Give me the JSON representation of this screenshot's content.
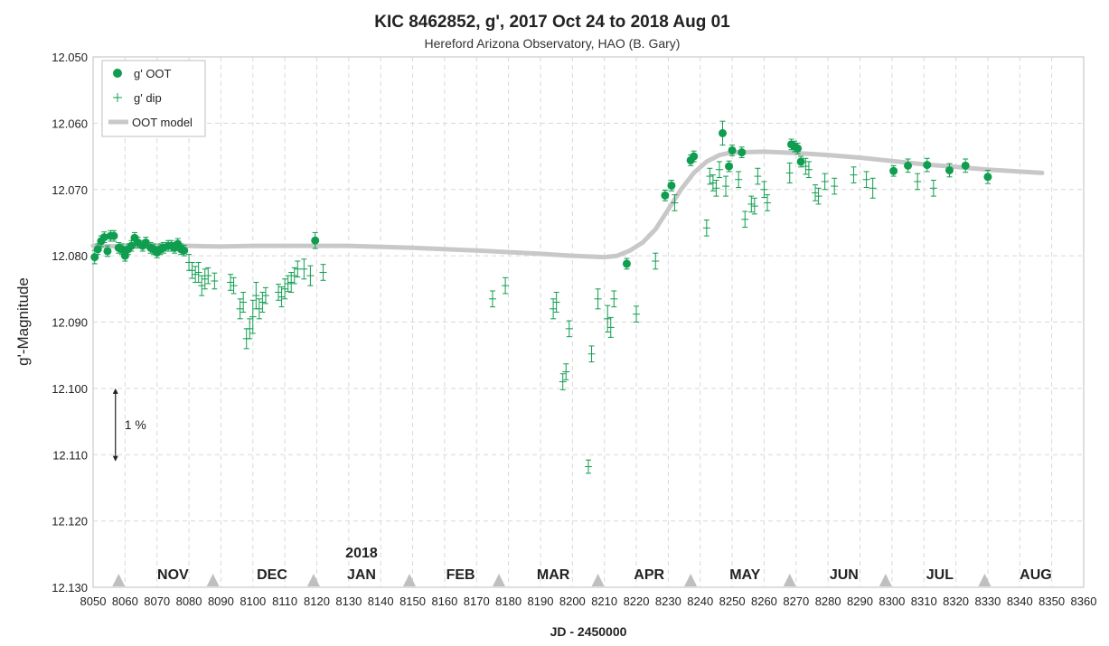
{
  "chart_data": {
    "type": "scatter",
    "title": "KIC 8462852, g', 2017 Oct 24 to 2018 Aug 01",
    "subtitle": "Hereford Arizona Observatory, HAO (B. Gary)",
    "xlabel": "JD - 2450000",
    "ylabel": "g'-Magnitude",
    "xlim": [
      8050,
      8360
    ],
    "ylim": [
      12.05,
      12.13
    ],
    "y_inverted": true,
    "grid": true,
    "legend_position": "top-left",
    "x_ticks": [
      "8050",
      "8060",
      "8070",
      "8080",
      "8090",
      "8100",
      "8110",
      "8120",
      "8130",
      "8140",
      "8150",
      "8160",
      "8170",
      "8180",
      "8190",
      "8200",
      "8210",
      "8220",
      "8230",
      "8240",
      "8250",
      "8260",
      "8270",
      "8280",
      "8290",
      "8300",
      "8310",
      "8320",
      "8330",
      "8340",
      "8350",
      "8360"
    ],
    "y_ticks": [
      "12.050",
      "12.060",
      "12.070",
      "12.080",
      "12.090",
      "12.100",
      "12.110",
      "12.120",
      "12.130"
    ],
    "legend": [
      "g' OOT",
      "g' dip",
      "OOT model"
    ],
    "series": [
      {
        "name": "g' OOT",
        "color": "#0f9d4f",
        "marker": "circle",
        "points": [
          [
            8050.5,
            12.0802
          ],
          [
            8051.5,
            12.079
          ],
          [
            8052.5,
            12.0778
          ],
          [
            8053.5,
            12.0772
          ],
          [
            8054.5,
            12.0793
          ],
          [
            8055.5,
            12.077
          ],
          [
            8056.5,
            12.077
          ],
          [
            8058,
            12.0788
          ],
          [
            8059,
            12.079
          ],
          [
            8060,
            12.08
          ],
          [
            8061,
            12.079
          ],
          [
            8062,
            12.0785
          ],
          [
            8063,
            12.0773
          ],
          [
            8064,
            12.078
          ],
          [
            8065.5,
            12.0785
          ],
          [
            8066.5,
            12.078
          ],
          [
            8068,
            12.0788
          ],
          [
            8069,
            12.079
          ],
          [
            8070,
            12.0795
          ],
          [
            8071,
            12.079
          ],
          [
            8072,
            12.0788
          ],
          [
            8073.5,
            12.0785
          ],
          [
            8074.5,
            12.0785
          ],
          [
            8075.5,
            12.0788
          ],
          [
            8076.5,
            12.0782
          ],
          [
            8077.5,
            12.079
          ],
          [
            8078.5,
            12.0792
          ],
          [
            8119.5,
            12.0777
          ],
          [
            8217,
            12.0812
          ],
          [
            8229,
            12.0709
          ],
          [
            8231,
            12.0694
          ],
          [
            8237,
            12.0656
          ],
          [
            8238,
            12.065
          ],
          [
            8247,
            12.0615
          ],
          [
            8249,
            12.0665
          ],
          [
            8250,
            12.0641
          ],
          [
            8253,
            12.0644
          ],
          [
            8268.5,
            12.0632
          ],
          [
            8269.5,
            12.0635
          ],
          [
            8270.5,
            12.0638
          ],
          [
            8271.5,
            12.0658
          ],
          [
            8300.5,
            12.0672
          ],
          [
            8305,
            12.0664
          ],
          [
            8311,
            12.0663
          ],
          [
            8318,
            12.0671
          ],
          [
            8323,
            12.0664
          ],
          [
            8330,
            12.0681
          ]
        ],
        "errors": [
          0.001,
          0.0008,
          0.0008,
          0.0008,
          0.0008,
          0.0008,
          0.0008,
          0.0008,
          0.0008,
          0.0008,
          0.0008,
          0.0008,
          0.0008,
          0.0008,
          0.0008,
          0.0008,
          0.0008,
          0.0008,
          0.0008,
          0.0008,
          0.0008,
          0.0008,
          0.0008,
          0.0008,
          0.0008,
          0.0008,
          0.0008,
          0.0012,
          0.0008,
          0.0008,
          0.0008,
          0.0008,
          0.0008,
          0.0018,
          0.0008,
          0.0008,
          0.0008,
          0.0008,
          0.0008,
          0.0008,
          0.0008,
          0.0008,
          0.001,
          0.001,
          0.001,
          0.001,
          0.001
        ]
      },
      {
        "name": "g' dip",
        "color": "#0f9d4f",
        "marker": "plus",
        "points": [
          [
            8080,
            12.081
          ],
          [
            8081,
            12.0822
          ],
          [
            8082,
            12.0828
          ],
          [
            8083,
            12.0825
          ],
          [
            8084,
            12.0845
          ],
          [
            8085,
            12.0835
          ],
          [
            8086,
            12.083
          ],
          [
            8088,
            12.0838
          ],
          [
            8093,
            12.084
          ],
          [
            8094,
            12.0845
          ],
          [
            8096,
            12.088
          ],
          [
            8097,
            12.087
          ],
          [
            8098,
            12.0925
          ],
          [
            8099,
            12.091
          ],
          [
            8100,
            12.0892
          ],
          [
            8101,
            12.086
          ],
          [
            8102,
            12.088
          ],
          [
            8103,
            12.087
          ],
          [
            8104,
            12.086
          ],
          [
            8108,
            12.0855
          ],
          [
            8109,
            12.0862
          ],
          [
            8110,
            12.085
          ],
          [
            8111,
            12.0842
          ],
          [
            8112,
            12.084
          ],
          [
            8113,
            12.083
          ],
          [
            8114,
            12.082
          ],
          [
            8116,
            12.082
          ],
          [
            8118,
            12.083
          ],
          [
            8122,
            12.0825
          ],
          [
            8175,
            12.0865
          ],
          [
            8179,
            12.0845
          ],
          [
            8194,
            12.088
          ],
          [
            8195,
            12.087
          ],
          [
            8197,
            12.099
          ],
          [
            8198,
            12.0975
          ],
          [
            8199,
            12.091
          ],
          [
            8205,
            12.1118
          ],
          [
            8206,
            12.0948
          ],
          [
            8208,
            12.0865
          ],
          [
            8211,
            12.0895
          ],
          [
            8212,
            12.0908
          ],
          [
            8213,
            12.0865
          ],
          [
            8220,
            12.0888
          ],
          [
            8226,
            12.0808
          ],
          [
            8232,
            12.072
          ],
          [
            8242,
            12.0758
          ],
          [
            8243,
            12.068
          ],
          [
            8244,
            12.069
          ],
          [
            8245,
            12.0698
          ],
          [
            8246,
            12.067
          ],
          [
            8248,
            12.0695
          ],
          [
            8252,
            12.0685
          ],
          [
            8254,
            12.0745
          ],
          [
            8256,
            12.0722
          ],
          [
            8257,
            12.0725
          ],
          [
            8258,
            12.068
          ],
          [
            8260,
            12.07
          ],
          [
            8261,
            12.072
          ],
          [
            8268,
            12.0675
          ],
          [
            8273,
            12.0665
          ],
          [
            8274,
            12.067
          ],
          [
            8276,
            12.0705
          ],
          [
            8277,
            12.071
          ],
          [
            8279,
            12.0688
          ],
          [
            8282,
            12.0695
          ],
          [
            8288,
            12.0678
          ],
          [
            8292,
            12.0685
          ],
          [
            8294,
            12.0698
          ],
          [
            8308,
            12.0688
          ],
          [
            8313,
            12.0698
          ]
        ],
        "errors": [
          0.0012,
          0.0012,
          0.0012,
          0.0015,
          0.0015,
          0.0015,
          0.0012,
          0.0012,
          0.0012,
          0.0012,
          0.0015,
          0.0015,
          0.0015,
          0.0015,
          0.0025,
          0.002,
          0.0015,
          0.0015,
          0.0012,
          0.0012,
          0.0015,
          0.0015,
          0.0012,
          0.0015,
          0.0012,
          0.0012,
          0.0015,
          0.0015,
          0.0012,
          0.0012,
          0.0012,
          0.0015,
          0.0015,
          0.0012,
          0.0012,
          0.0012,
          0.001,
          0.0012,
          0.0015,
          0.002,
          0.0015,
          0.0012,
          0.0012,
          0.0012,
          0.0012,
          0.0012,
          0.0012,
          0.0012,
          0.0012,
          0.0012,
          0.0015,
          0.0012,
          0.0012,
          0.0012,
          0.0012,
          0.0012,
          0.0012,
          0.0012,
          0.0015,
          0.0012,
          0.0012,
          0.0012,
          0.0012,
          0.0012,
          0.0012,
          0.0012,
          0.0012,
          0.0015,
          0.0012,
          0.0012
        ]
      },
      {
        "name": "OOT model",
        "color": "#c8c8c8",
        "marker": "line",
        "points": [
          [
            8050,
            12.0785
          ],
          [
            8060,
            12.0786
          ],
          [
            8080,
            12.0785
          ],
          [
            8090,
            12.0786
          ],
          [
            8100,
            12.0785
          ],
          [
            8130,
            12.0785
          ],
          [
            8150,
            12.0788
          ],
          [
            8170,
            12.0792
          ],
          [
            8190,
            12.0797
          ],
          [
            8200,
            12.08
          ],
          [
            8210,
            12.0802
          ],
          [
            8214,
            12.08
          ],
          [
            8218,
            12.0792
          ],
          [
            8222,
            12.078
          ],
          [
            8226,
            12.076
          ],
          [
            8230,
            12.073
          ],
          [
            8234,
            12.07
          ],
          [
            8238,
            12.0675
          ],
          [
            8242,
            12.0658
          ],
          [
            8246,
            12.0648
          ],
          [
            8250,
            12.0644
          ],
          [
            8260,
            12.0643
          ],
          [
            8270,
            12.0645
          ],
          [
            8280,
            12.0648
          ],
          [
            8290,
            12.0652
          ],
          [
            8300,
            12.0657
          ],
          [
            8310,
            12.0662
          ],
          [
            8320,
            12.0666
          ],
          [
            8330,
            12.067
          ],
          [
            8340,
            12.0673
          ],
          [
            8347,
            12.0675
          ]
        ]
      }
    ],
    "month_labels": [
      {
        "label": "NOV",
        "x": 8075
      },
      {
        "label": "DEC",
        "x": 8106
      },
      {
        "label": "2018",
        "x": 8134,
        "line": 1
      },
      {
        "label": "JAN",
        "x": 8134
      },
      {
        "label": "FEB",
        "x": 8165
      },
      {
        "label": "MAR",
        "x": 8194
      },
      {
        "label": "APR",
        "x": 8224
      },
      {
        "label": "MAY",
        "x": 8254
      },
      {
        "label": "JUN",
        "x": 8285
      },
      {
        "label": "JUL",
        "x": 8315
      },
      {
        "label": "AUG",
        "x": 8345
      }
    ],
    "month_markers_x": [
      8058,
      8087.5,
      8119,
      8149,
      8177,
      8208,
      8237,
      8268,
      8298,
      8329
    ],
    "annotation": {
      "text": "1 %",
      "x": 8057,
      "y_range": [
        12.1,
        12.111
      ]
    }
  }
}
